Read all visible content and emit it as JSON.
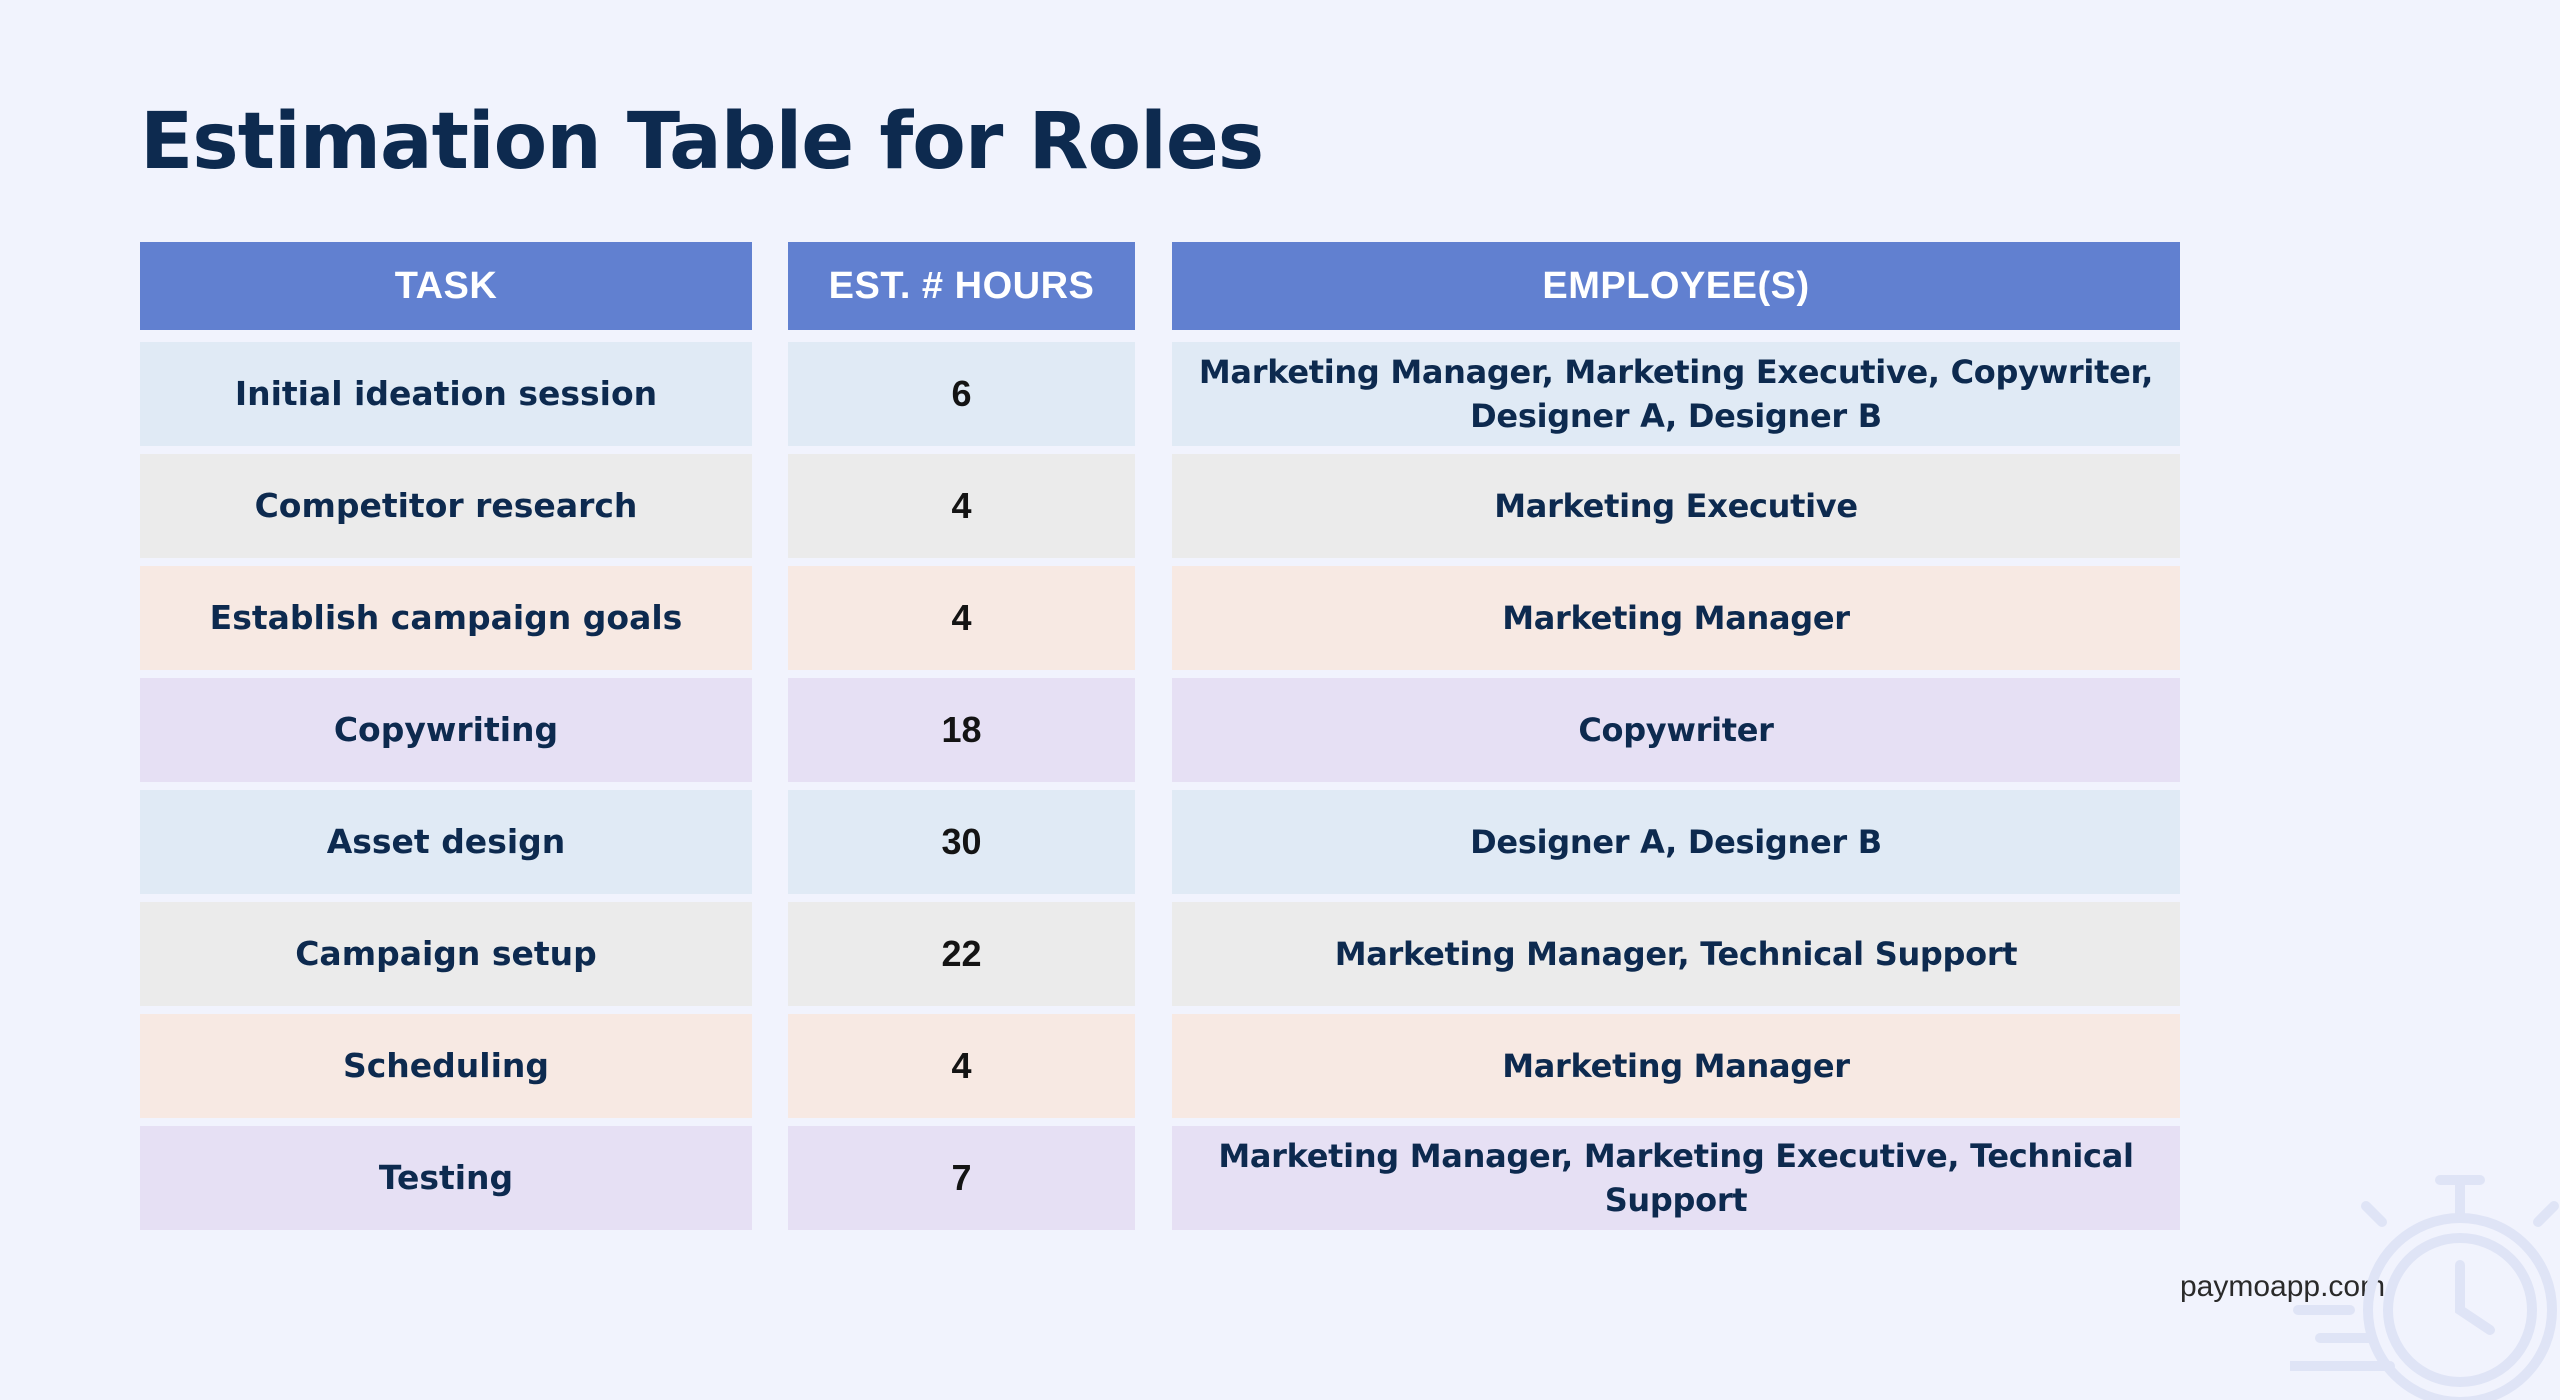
{
  "title": "Estimation Table for Roles",
  "headers": {
    "task": "TASK",
    "hours": "EST. # HOURS",
    "employees": "EMPLOYEE(S)"
  },
  "rows": [
    {
      "task": "Initial ideation session",
      "hours": "6",
      "employees": "Marketing Manager, Marketing Executive, Copywriter, Designer A, Designer B"
    },
    {
      "task": "Competitor research",
      "hours": "4",
      "employees": "Marketing Executive"
    },
    {
      "task": "Establish campaign goals",
      "hours": "4",
      "employees": "Marketing Manager"
    },
    {
      "task": "Copywriting",
      "hours": "18",
      "employees": "Copywriter"
    },
    {
      "task": "Asset design",
      "hours": "30",
      "employees": "Designer A, Designer B"
    },
    {
      "task": "Campaign setup",
      "hours": "22",
      "employees": "Marketing Manager, Technical Support"
    },
    {
      "task": "Scheduling",
      "hours": "4",
      "employees": "Marketing Manager"
    },
    {
      "task": "Testing",
      "hours": "7",
      "employees": "Marketing Manager, Marketing Executive, Technical Support"
    }
  ],
  "footer": "paymoapp.com",
  "watermark_icon": "stopwatch-icon",
  "colors": {
    "background": "#f1f3fd",
    "header": "#6180d0",
    "title": "#0d2a4f",
    "row_blue": "#e0eaf5",
    "row_gray": "#ebebeb",
    "row_peach": "#f7e9e3",
    "row_lavender": "#e6e0f4"
  }
}
